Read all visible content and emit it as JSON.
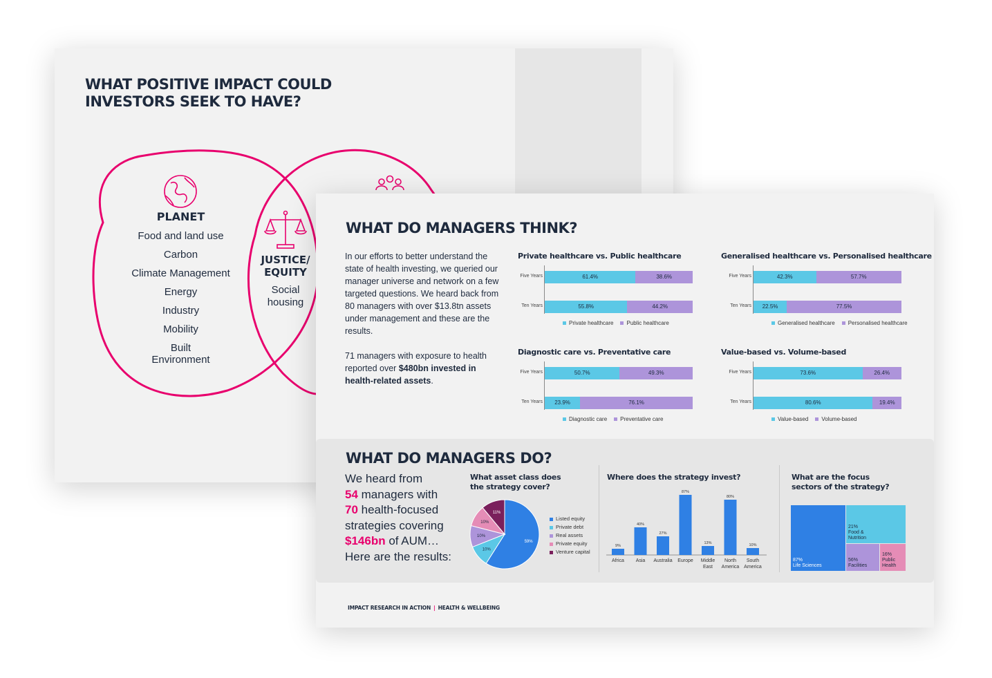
{
  "back_page": {
    "title_line1": "WHAT POSITIVE IMPACT COULD",
    "title_line2": "INVESTORS SEEK TO HAVE?",
    "planet": {
      "title": "PLANET",
      "items": [
        "Food and land use",
        "Carbon",
        "Climate Management",
        "Energy",
        "Industry",
        "Mobility",
        "Built Environment"
      ]
    },
    "justice": {
      "title_line1": "JUSTICE/",
      "title_line2": "EQUITY",
      "item_line1": "Social",
      "item_line2": "housing"
    },
    "accent_color": "#e8006d"
  },
  "front_page": {
    "think_title": "WHAT DO MANAGERS THINK?",
    "intro_p1": "In our efforts to better understand the state of health investing, we queried our manager universe and network on a few targeted questions. We heard back from 80 managers with over $13.8tn assets under management and these are the results.",
    "intro_p2_start": "71 managers with exposure to health reported over ",
    "intro_p2_bold": "$480bn invested in health-related assets",
    "intro_p2_end": ".",
    "do_title": "WHAT DO MANAGERS DO?",
    "do_text": {
      "l1": "We heard from",
      "n1": "54",
      "l2": " managers with",
      "n2": "70",
      "l3": " health-focused strategies covering",
      "n3": "$146bn",
      "l4": " of AUM…",
      "l5": "Here are the results:"
    },
    "footer_left": "IMPACT RESEARCH IN ACTION",
    "footer_sep": "|",
    "footer_right": "HEALTH & WELLBEING"
  },
  "chart_data": [
    {
      "type": "bar",
      "stacked": true,
      "orientation": "horizontal",
      "title": "Private healthcare vs. Public healthcare",
      "categories": [
        "Five Years",
        "Ten Years"
      ],
      "series": [
        {
          "name": "Private healthcare",
          "values": [
            61.4,
            55.8
          ],
          "labels": [
            "61.4%",
            "55.8%"
          ]
        },
        {
          "name": "Public healthcare",
          "values": [
            38.6,
            44.2
          ],
          "labels": [
            "38.6%",
            "44.2%"
          ]
        }
      ],
      "legend": "bottom"
    },
    {
      "type": "bar",
      "stacked": true,
      "orientation": "horizontal",
      "title": "Generalised healthcare vs. Personalised healthcare",
      "categories": [
        "Five Years",
        "Ten Years"
      ],
      "series": [
        {
          "name": "Generalised healthcare",
          "values": [
            42.3,
            22.5
          ],
          "labels": [
            "42.3%",
            "22.5%"
          ]
        },
        {
          "name": "Personalised healthcare",
          "values": [
            57.7,
            77.5
          ],
          "labels": [
            "57.7%",
            "77.5%"
          ]
        }
      ],
      "legend": "bottom"
    },
    {
      "type": "bar",
      "stacked": true,
      "orientation": "horizontal",
      "title": "Diagnostic care vs. Preventative care",
      "categories": [
        "Five Years",
        "Ten Years"
      ],
      "series": [
        {
          "name": "Diagnostic care",
          "values": [
            50.7,
            23.9
          ],
          "labels": [
            "50.7%",
            "23.9%"
          ]
        },
        {
          "name": "Preventative care",
          "values": [
            49.3,
            76.1
          ],
          "labels": [
            "49.3%",
            "76.1%"
          ]
        }
      ],
      "legend": "bottom"
    },
    {
      "type": "bar",
      "stacked": true,
      "orientation": "horizontal",
      "title": "Value-based vs. Volume-based",
      "categories": [
        "Five Years",
        "Ten Years"
      ],
      "series": [
        {
          "name": "Value-based",
          "values": [
            73.6,
            80.6
          ],
          "labels": [
            "73.6%",
            "80.6%"
          ]
        },
        {
          "name": "Volume-based",
          "values": [
            26.4,
            19.4
          ],
          "labels": [
            "26.4%",
            "19.4%"
          ]
        }
      ],
      "legend": "bottom"
    },
    {
      "type": "pie",
      "title_line1": "What asset class does",
      "title_line2": "the strategy cover?",
      "slices": [
        {
          "name": "Listed equity",
          "value": 59,
          "label": "59%",
          "color": "#2f80e4"
        },
        {
          "name": "Private debt",
          "value": 10,
          "label": "10%",
          "color": "#5bc8e6"
        },
        {
          "name": "Real assets",
          "value": 10,
          "label": "10%",
          "color": "#ad94da"
        },
        {
          "name": "Private equity",
          "value": 10,
          "label": "10%",
          "color": "#e58cb6"
        },
        {
          "name": "Venture capital",
          "value": 11,
          "label": "11%",
          "color": "#7a1f5c"
        }
      ],
      "legend": "right"
    },
    {
      "type": "bar",
      "title": "Where does the strategy invest?",
      "categories": [
        "Africa",
        "Asia",
        "Australia",
        "Europe",
        "Middle East",
        "North America",
        "South America"
      ],
      "values": [
        9,
        40,
        27,
        87,
        13,
        80,
        10
      ],
      "labels": [
        "9%",
        "40%",
        "27%",
        "87%",
        "13%",
        "80%",
        "10%"
      ],
      "ylim": [
        0,
        90
      ],
      "color": "#2f80e4"
    },
    {
      "type": "heatmap",
      "subtype": "treemap",
      "title_line1": "What are the focus",
      "title_line2": "sectors of the strategy?",
      "cells": [
        {
          "value_label": "87%",
          "name": "Life Sciences",
          "color": "#2f80e4"
        },
        {
          "value_label": "21%",
          "name_line1": "Food &",
          "name_line2": "Nutrition",
          "color": "#5bc8e6"
        },
        {
          "value_label": "56%",
          "name": "Facilities",
          "color": "#ad94da"
        },
        {
          "value_label": "16%",
          "name_line1": "Public",
          "name_line2": "Health",
          "color": "#e58cb6"
        }
      ]
    }
  ]
}
